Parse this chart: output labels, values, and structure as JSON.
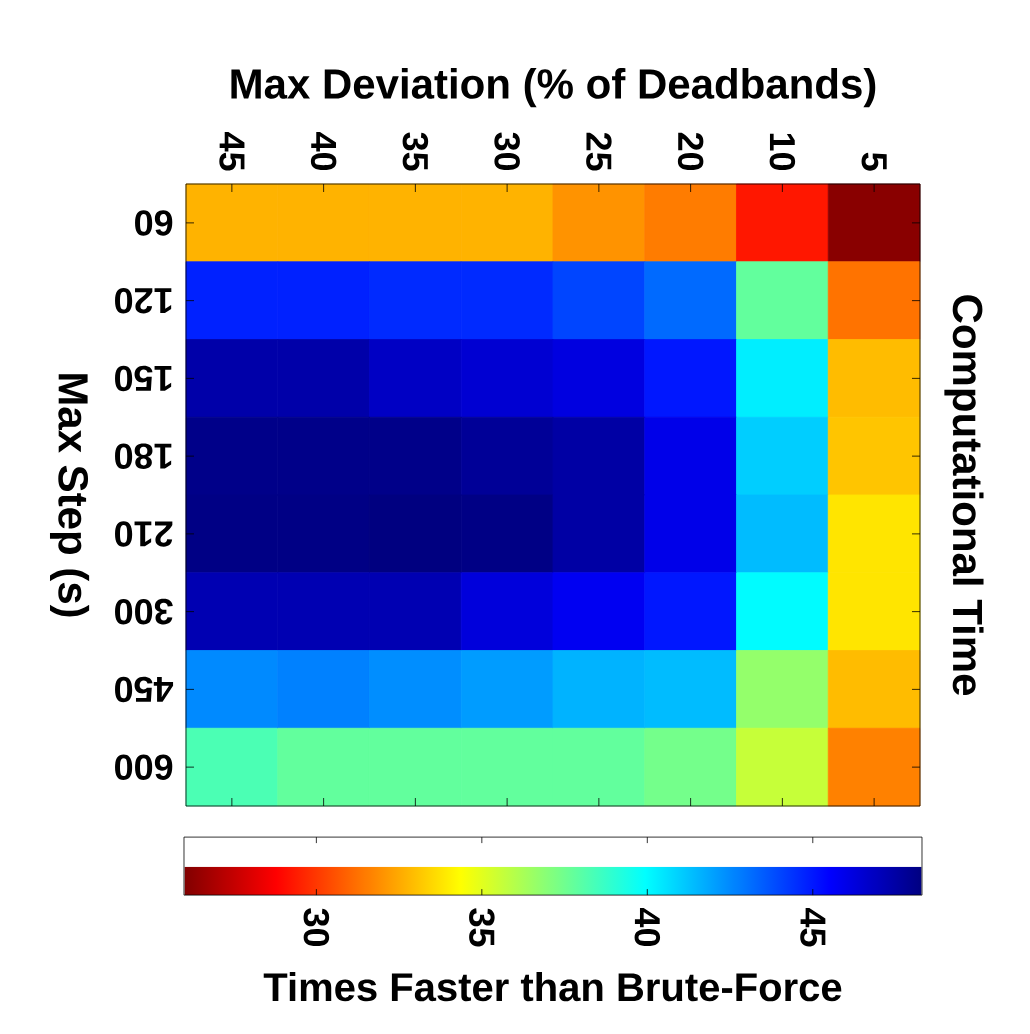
{
  "chart_data": {
    "type": "heatmap",
    "xlabel": "Max Deviation (% of Deadbands)",
    "ylabel": "Max Step (s)",
    "clabel": "Times Faster than Brute-Force",
    "annotations": [
      "Computational Time"
    ],
    "categories": [
      "45",
      "40",
      "35",
      "30",
      "25",
      "20",
      "10",
      "5"
    ],
    "y_categories": [
      "60",
      "120",
      "150",
      "180",
      "210",
      "300",
      "450",
      "600"
    ],
    "cells": [
      [
        32.7,
        32.7,
        32.7,
        32.7,
        32.0,
        31.5,
        29.3,
        26.2
      ],
      [
        44.8,
        44.8,
        44.6,
        44.6,
        44.0,
        43.2,
        37.8,
        31.3
      ],
      [
        47.4,
        47.4,
        46.8,
        46.5,
        46.2,
        45.0,
        40.3,
        32.9
      ],
      [
        48.1,
        48.1,
        48.1,
        47.8,
        47.5,
        46.0,
        41.0,
        33.1
      ],
      [
        48.2,
        48.2,
        48.3,
        48.2,
        47.5,
        46.0,
        41.4,
        33.8
      ],
      [
        47.2,
        47.2,
        47.2,
        46.3,
        45.8,
        45.0,
        40.0,
        33.8
      ],
      [
        42.5,
        42.7,
        42.4,
        42.1,
        41.6,
        41.4,
        36.7,
        32.9
      ],
      [
        38.3,
        37.8,
        37.8,
        37.8,
        37.8,
        37.4,
        35.6,
        31.6
      ]
    ],
    "clim": [
      26,
      48.3
    ],
    "cticks": [
      30,
      35,
      40,
      45
    ]
  }
}
